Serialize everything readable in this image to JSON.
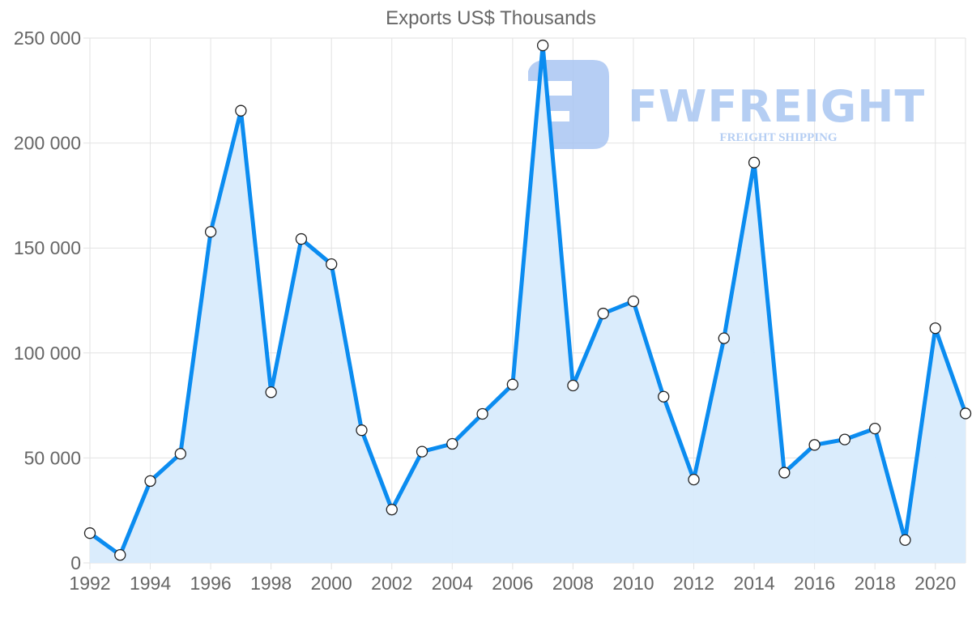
{
  "chart_data": {
    "type": "area",
    "title": "Exports US$ Thousands",
    "xlabel": "",
    "ylabel": "",
    "ylim": [
      0,
      250000
    ],
    "yticks": [
      0,
      50000,
      100000,
      150000,
      200000,
      250000
    ],
    "ytick_labels": [
      "0",
      "50 000",
      "100 000",
      "150 000",
      "200 000",
      "250 000"
    ],
    "xtick_labels": [
      "1992",
      "1994",
      "1996",
      "1998",
      "2000",
      "2002",
      "2004",
      "2006",
      "2008",
      "2010",
      "2012",
      "2014",
      "2016",
      "2018",
      "2020"
    ],
    "grid": true,
    "legend": "none",
    "x": [
      1992,
      1993,
      1994,
      1995,
      1996,
      1997,
      1998,
      1999,
      2000,
      2001,
      2002,
      2003,
      2004,
      2005,
      2006,
      2007,
      2008,
      2009,
      2010,
      2011,
      2012,
      2013,
      2014,
      2015,
      2016,
      2017,
      2018,
      2019,
      2020,
      2021
    ],
    "series": [
      {
        "name": "Exports US$ Thousands",
        "color": "#0b8cf0",
        "fill": "#d8ebfc",
        "values": [
          14200,
          3800,
          39000,
          52000,
          157700,
          215400,
          81300,
          154300,
          142300,
          63200,
          25400,
          53000,
          56700,
          71000,
          85000,
          246500,
          84500,
          118800,
          124600,
          79200,
          39700,
          107000,
          190700,
          43000,
          56200,
          58800,
          64000,
          10900,
          111800,
          71200
        ]
      }
    ]
  },
  "watermark": {
    "brand": "FWFREIGHT",
    "tagline": "FREIGHT SHIPPING",
    "color": "#a9c6f2"
  }
}
